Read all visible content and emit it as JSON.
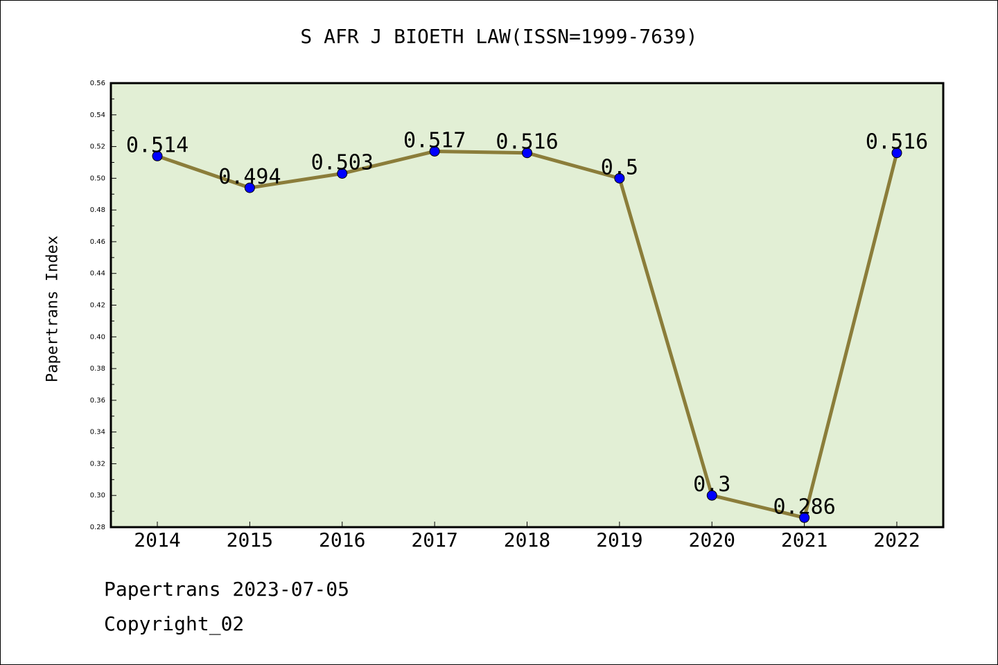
{
  "chart_data": {
    "type": "line",
    "title": "S AFR J BIOETH LAW(ISSN=1999-7639)",
    "xlabel": "",
    "ylabel": "Papertrans Index",
    "categories": [
      "2014",
      "2015",
      "2016",
      "2017",
      "2018",
      "2019",
      "2020",
      "2021",
      "2022"
    ],
    "series": [
      {
        "values": [
          0.514,
          0.494,
          0.503,
          0.517,
          0.516,
          0.5,
          0.3,
          0.286,
          0.516
        ],
        "labels": [
          "0.514",
          "0.494",
          "0.503",
          "0.517",
          "0.516",
          "0.5",
          "0.3",
          "0.286",
          "0.516"
        ]
      }
    ],
    "ylim": [
      0.28,
      0.56
    ],
    "yticks": [
      "0.28",
      "0.30",
      "0.32",
      "0.34",
      "0.36",
      "0.38",
      "0.40",
      "0.42",
      "0.44",
      "0.46",
      "0.48",
      "0.50",
      "0.52",
      "0.54",
      "0.56"
    ],
    "grid": false,
    "colors": {
      "plot_background": "#e2efd5",
      "line": "#8b7d3a",
      "marker": "#0000ff"
    }
  },
  "footer": {
    "date_line": "Papertrans 2023-07-05",
    "copyright": "Copyright_02"
  }
}
